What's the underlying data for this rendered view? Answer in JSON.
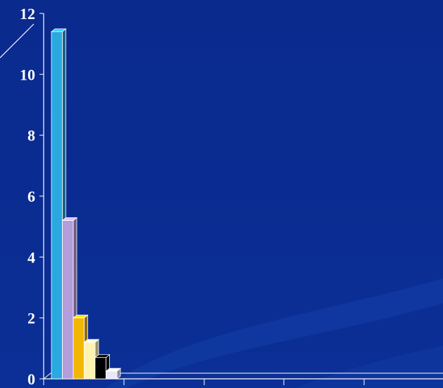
{
  "chart_data": {
    "type": "bar",
    "style": "3d",
    "title": "",
    "xlabel": "",
    "ylabel": "",
    "ylim": [
      0,
      12
    ],
    "yticks": [
      0,
      2,
      4,
      6,
      8,
      10,
      12
    ],
    "ytick_labels": [
      "0",
      "2",
      "4",
      "6",
      "8",
      "10",
      "12"
    ],
    "grid": false,
    "legend": "none",
    "series": [
      {
        "values": [
          11.4,
          5.2,
          2.0,
          1.2,
          0.7,
          0.25
        ]
      }
    ],
    "bar_colors": [
      "#2aa8e0",
      "#b39ddb",
      "#f2b705",
      "#fff3b0",
      "#000000",
      "#e6e6ff"
    ],
    "axis_color": "#ffffff"
  },
  "colors": {
    "background": "#0a2a8e",
    "background_dark": "#061a6a",
    "swoosh": "#1a45b0"
  }
}
